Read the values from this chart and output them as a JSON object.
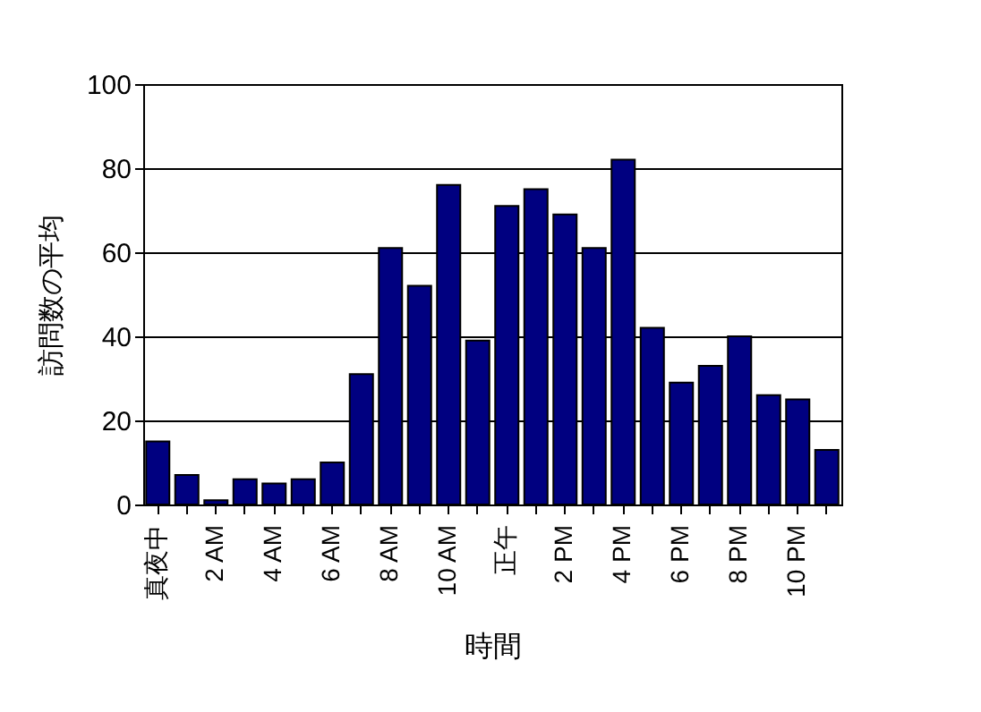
{
  "chart_data": {
    "type": "bar",
    "xlabel": "時間",
    "ylabel": "訪問数の平均",
    "categories": [
      "真夜中",
      null,
      "2 AM",
      null,
      "4 AM",
      null,
      "6 AM",
      null,
      "8 AM",
      null,
      "10 AM",
      null,
      "正午",
      null,
      "2 PM",
      null,
      "4 PM",
      null,
      "6 PM",
      null,
      "8 PM",
      null,
      "10 PM",
      null
    ],
    "values": [
      15,
      7,
      1,
      6,
      5,
      6,
      10,
      31,
      61,
      52,
      76,
      39,
      71,
      75,
      69,
      61,
      82,
      42,
      29,
      33,
      40,
      26,
      25,
      13
    ],
    "color": "#000080",
    "ylim": [
      0,
      100
    ],
    "yticks": [
      0,
      20,
      40,
      60,
      80,
      100
    ],
    "grid": "y"
  }
}
